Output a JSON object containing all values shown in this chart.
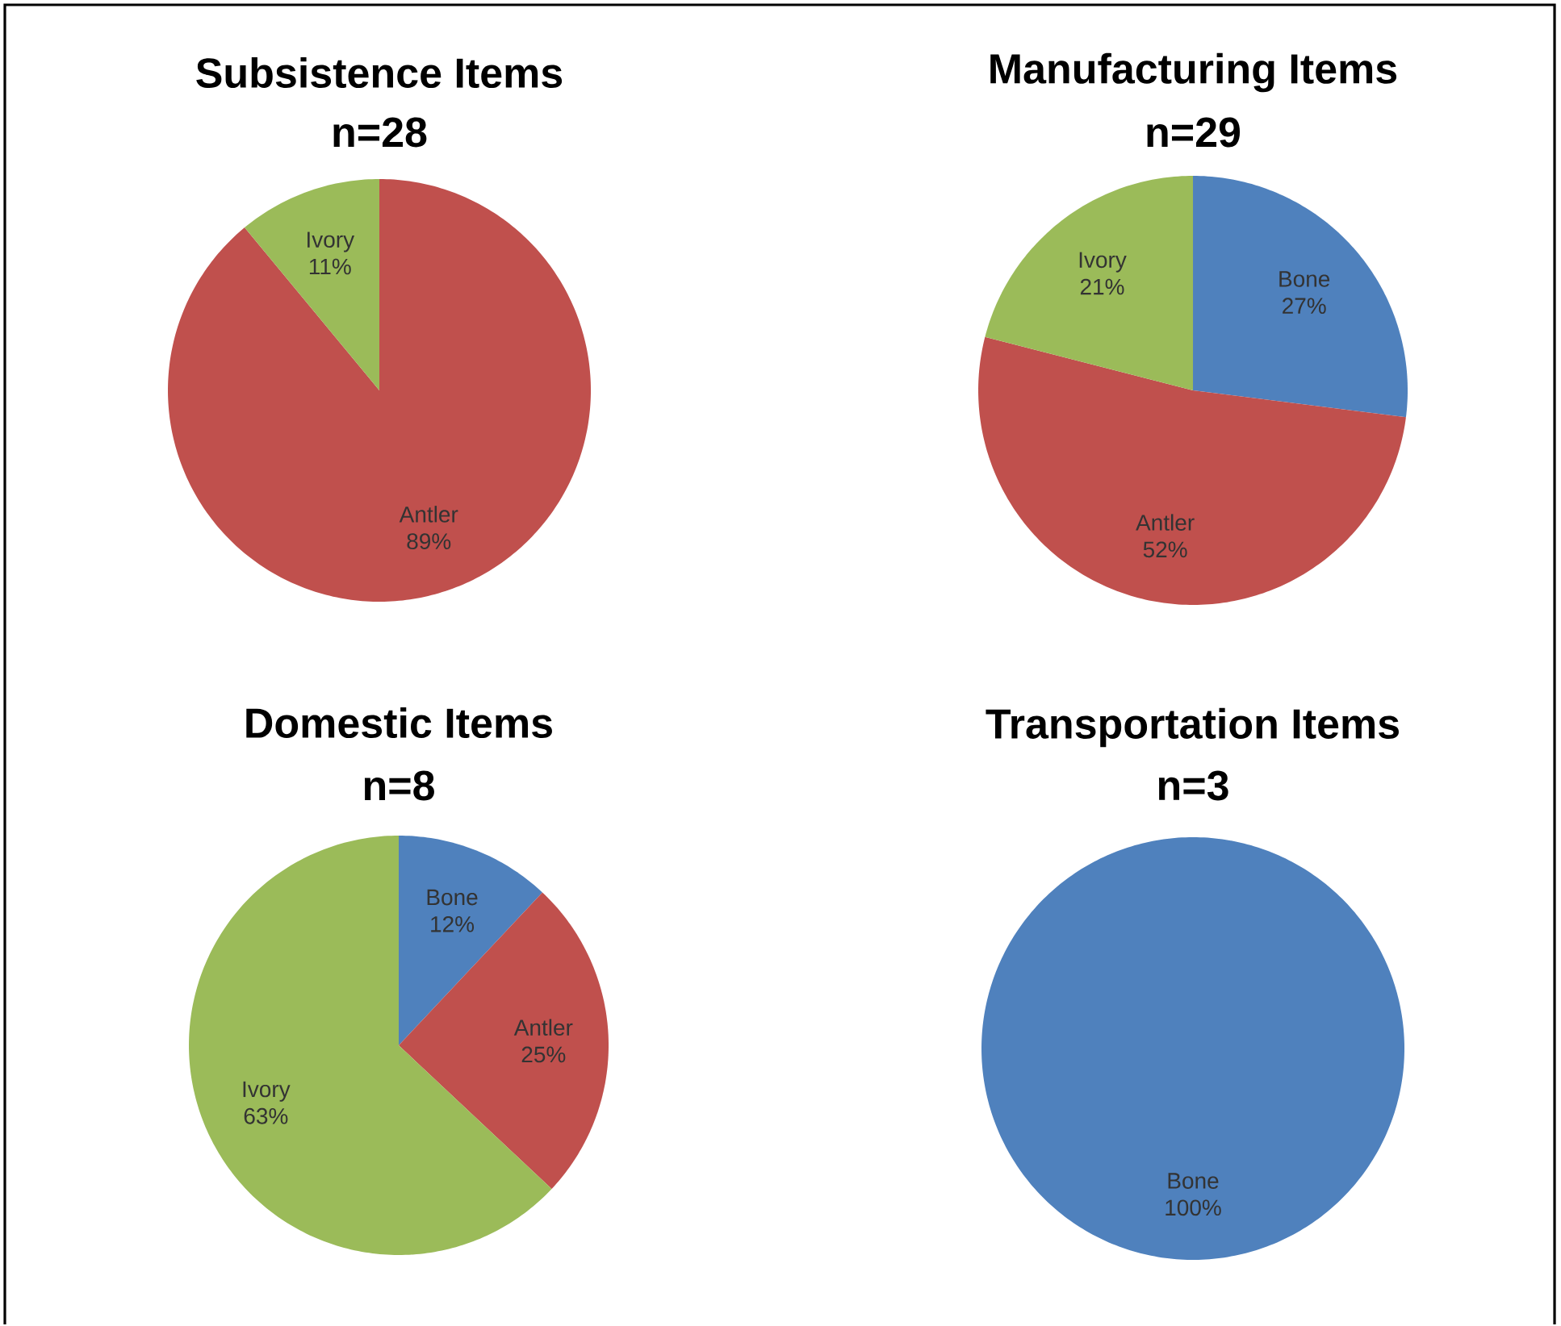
{
  "chart_data": [
    {
      "type": "pie",
      "title": "Subsistence Items",
      "subtitle": "n=28",
      "categories": [
        "Antler",
        "Ivory"
      ],
      "values": [
        89,
        11
      ],
      "colors": [
        "#c0504d",
        "#9bbb59"
      ],
      "value_labels": [
        "89%",
        "11%"
      ]
    },
    {
      "type": "pie",
      "title": "Manufacturing Items",
      "subtitle": "n=29",
      "categories": [
        "Bone",
        "Antler",
        "Ivory"
      ],
      "values": [
        27,
        52,
        21
      ],
      "colors": [
        "#4f81bd",
        "#c0504d",
        "#9bbb59"
      ],
      "value_labels": [
        "27%",
        "52%",
        "21%"
      ]
    },
    {
      "type": "pie",
      "title": "Domestic Items",
      "subtitle": "n=8",
      "categories": [
        "Bone",
        "Antler",
        "Ivory"
      ],
      "values": [
        12,
        25,
        63
      ],
      "colors": [
        "#4f81bd",
        "#c0504d",
        "#9bbb59"
      ],
      "value_labels": [
        "12%",
        "25%",
        "63%"
      ]
    },
    {
      "type": "pie",
      "title": "Transportation Items",
      "subtitle": "n=3",
      "categories": [
        "Bone"
      ],
      "values": [
        100
      ],
      "colors": [
        "#4f81bd"
      ],
      "value_labels": [
        "100%"
      ]
    }
  ]
}
